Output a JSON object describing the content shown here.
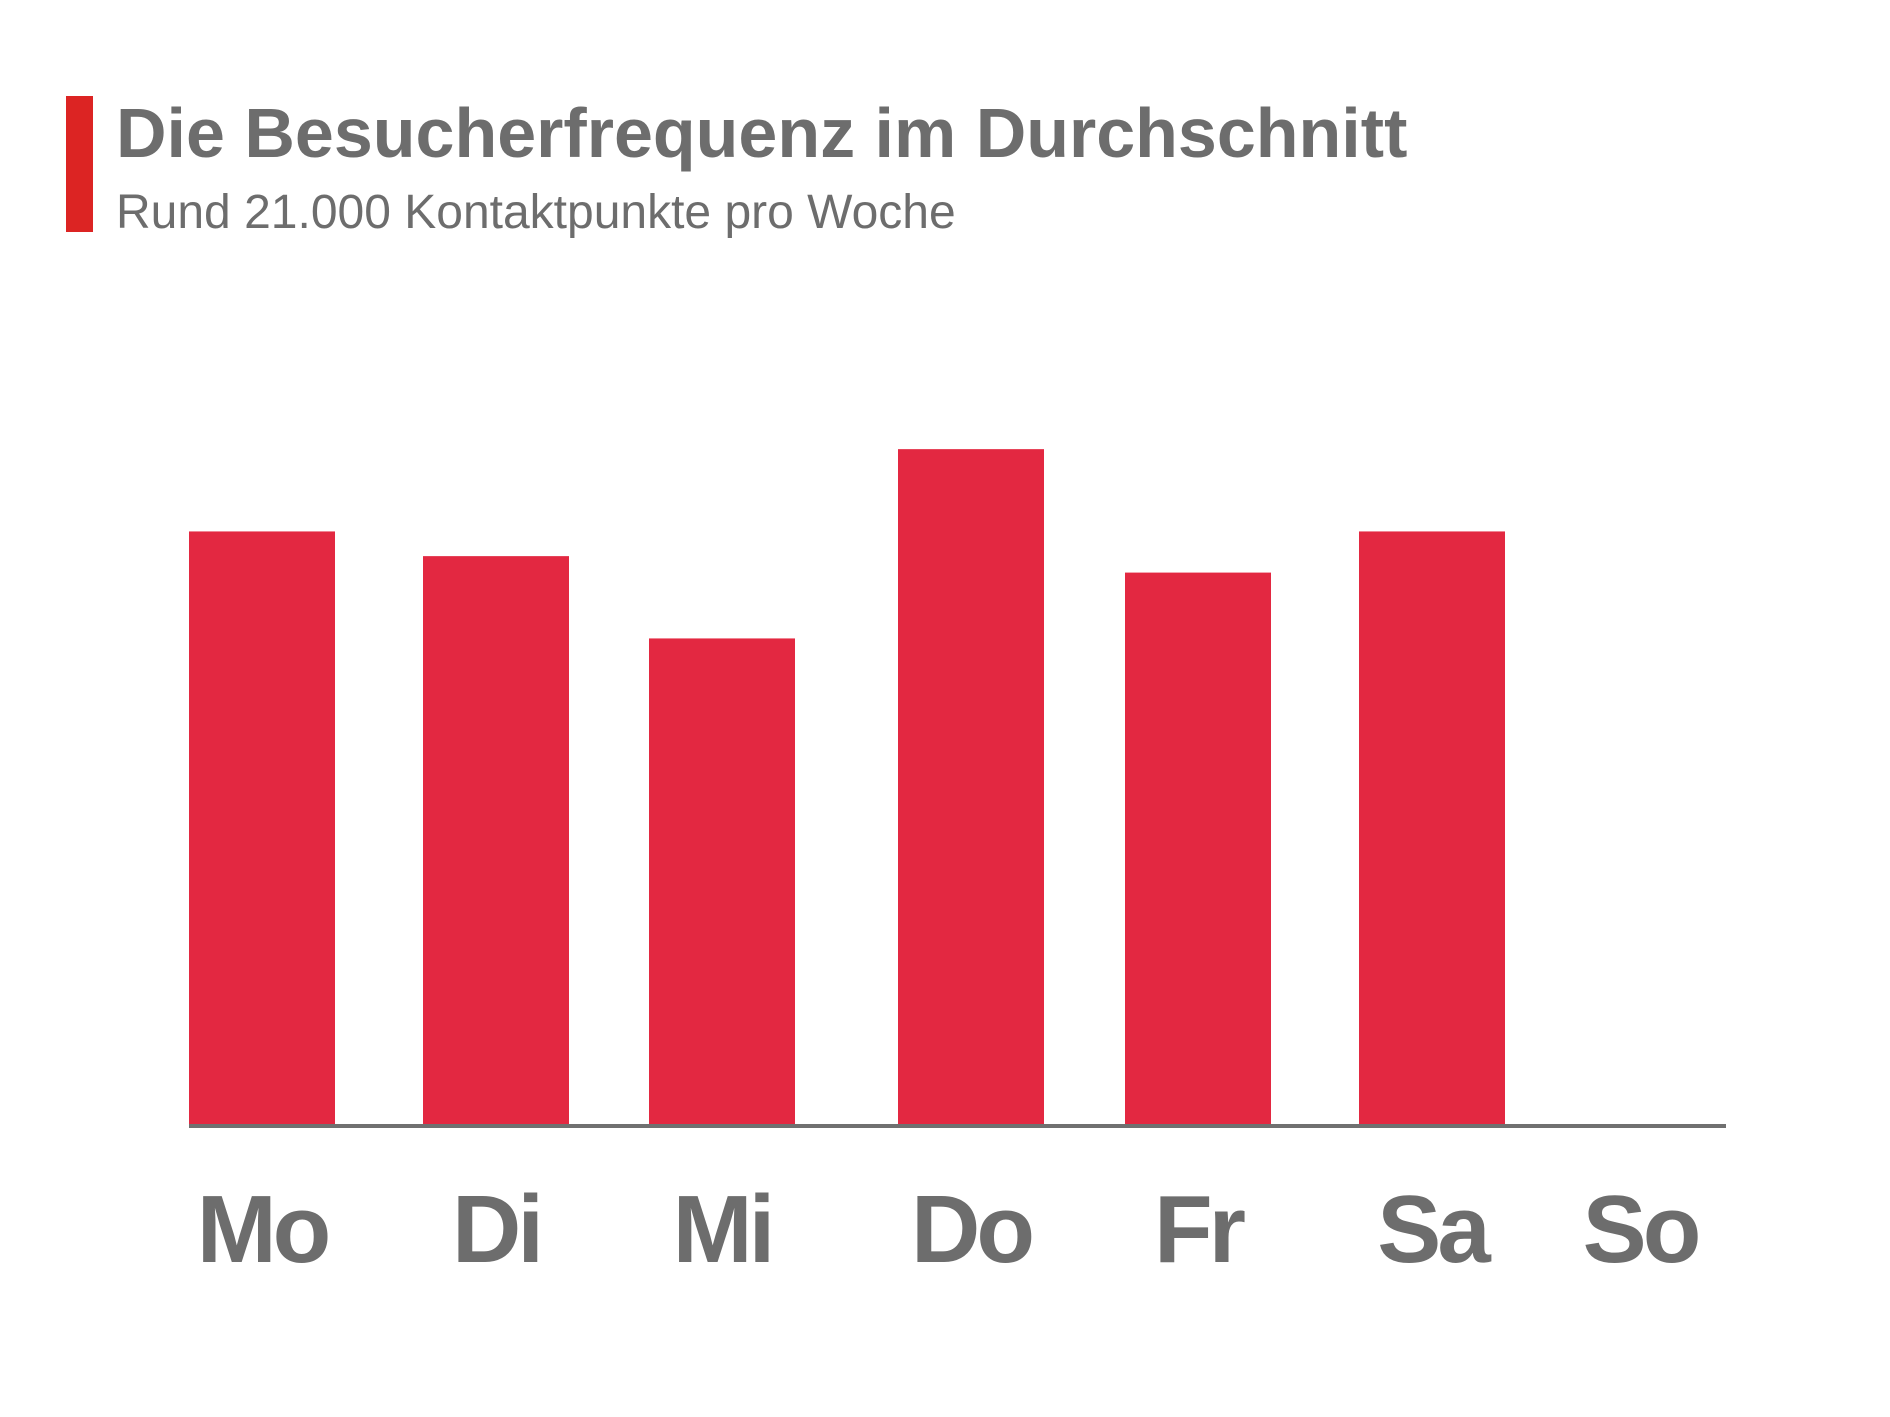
{
  "chart_data": {
    "type": "bar",
    "title": "Die Besucherfrequenz im Durchschnitt",
    "subtitle": "Rund 21.000 Kontaktpunkte pro Woche",
    "categories": [
      "Mo",
      "Di",
      "Mi",
      "Do",
      "Fr",
      "Sa",
      "So"
    ],
    "values": [
      3600,
      3450,
      2950,
      4100,
      3350,
      3600,
      0
    ],
    "color": "#e32841",
    "ylim": [
      0,
      5000
    ]
  }
}
